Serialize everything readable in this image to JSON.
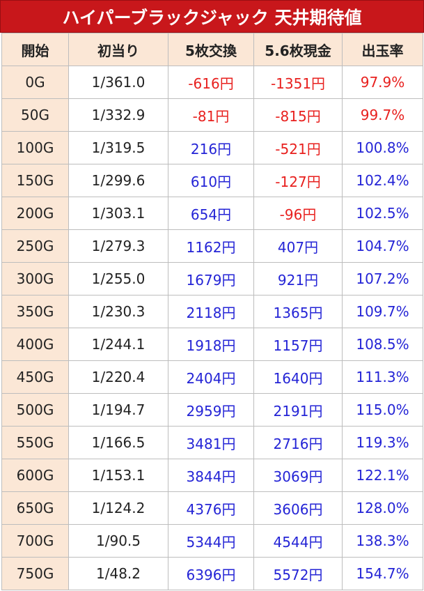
{
  "title": "ハイパーブラックジャック 天井期待値",
  "headers": [
    "開始",
    "初当り",
    "5枚交換",
    "5.6枚現金",
    "出玉率"
  ],
  "colors": {
    "title_bg": "#c8171b",
    "header_bg": "#fbe7d6",
    "negative": "#e8201e",
    "positive": "#2424d6"
  },
  "rows": [
    {
      "start": "0G",
      "prob": "1/361.0",
      "ex5": "-616円",
      "cash56": "-1351円",
      "rate": "97.9%"
    },
    {
      "start": "50G",
      "prob": "1/332.9",
      "ex5": "-81円",
      "cash56": "-815円",
      "rate": "99.7%"
    },
    {
      "start": "100G",
      "prob": "1/319.5",
      "ex5": "216円",
      "cash56": "-521円",
      "rate": "100.8%"
    },
    {
      "start": "150G",
      "prob": "1/299.6",
      "ex5": "610円",
      "cash56": "-127円",
      "rate": "102.4%"
    },
    {
      "start": "200G",
      "prob": "1/303.1",
      "ex5": "654円",
      "cash56": "-96円",
      "rate": "102.5%"
    },
    {
      "start": "250G",
      "prob": "1/279.3",
      "ex5": "1162円",
      "cash56": "407円",
      "rate": "104.7%"
    },
    {
      "start": "300G",
      "prob": "1/255.0",
      "ex5": "1679円",
      "cash56": "921円",
      "rate": "107.2%"
    },
    {
      "start": "350G",
      "prob": "1/230.3",
      "ex5": "2118円",
      "cash56": "1365円",
      "rate": "109.7%"
    },
    {
      "start": "400G",
      "prob": "1/244.1",
      "ex5": "1918円",
      "cash56": "1157円",
      "rate": "108.5%"
    },
    {
      "start": "450G",
      "prob": "1/220.4",
      "ex5": "2404円",
      "cash56": "1640円",
      "rate": "111.3%"
    },
    {
      "start": "500G",
      "prob": "1/194.7",
      "ex5": "2959円",
      "cash56": "2191円",
      "rate": "115.0%"
    },
    {
      "start": "550G",
      "prob": "1/166.5",
      "ex5": "3481円",
      "cash56": "2716円",
      "rate": "119.3%"
    },
    {
      "start": "600G",
      "prob": "1/153.1",
      "ex5": "3844円",
      "cash56": "3069円",
      "rate": "122.1%"
    },
    {
      "start": "650G",
      "prob": "1/124.2",
      "ex5": "4376円",
      "cash56": "3606円",
      "rate": "128.0%"
    },
    {
      "start": "700G",
      "prob": "1/90.5",
      "ex5": "5344円",
      "cash56": "4544円",
      "rate": "138.3%"
    },
    {
      "start": "750G",
      "prob": "1/48.2",
      "ex5": "6396円",
      "cash56": "5572円",
      "rate": "154.7%"
    }
  ]
}
